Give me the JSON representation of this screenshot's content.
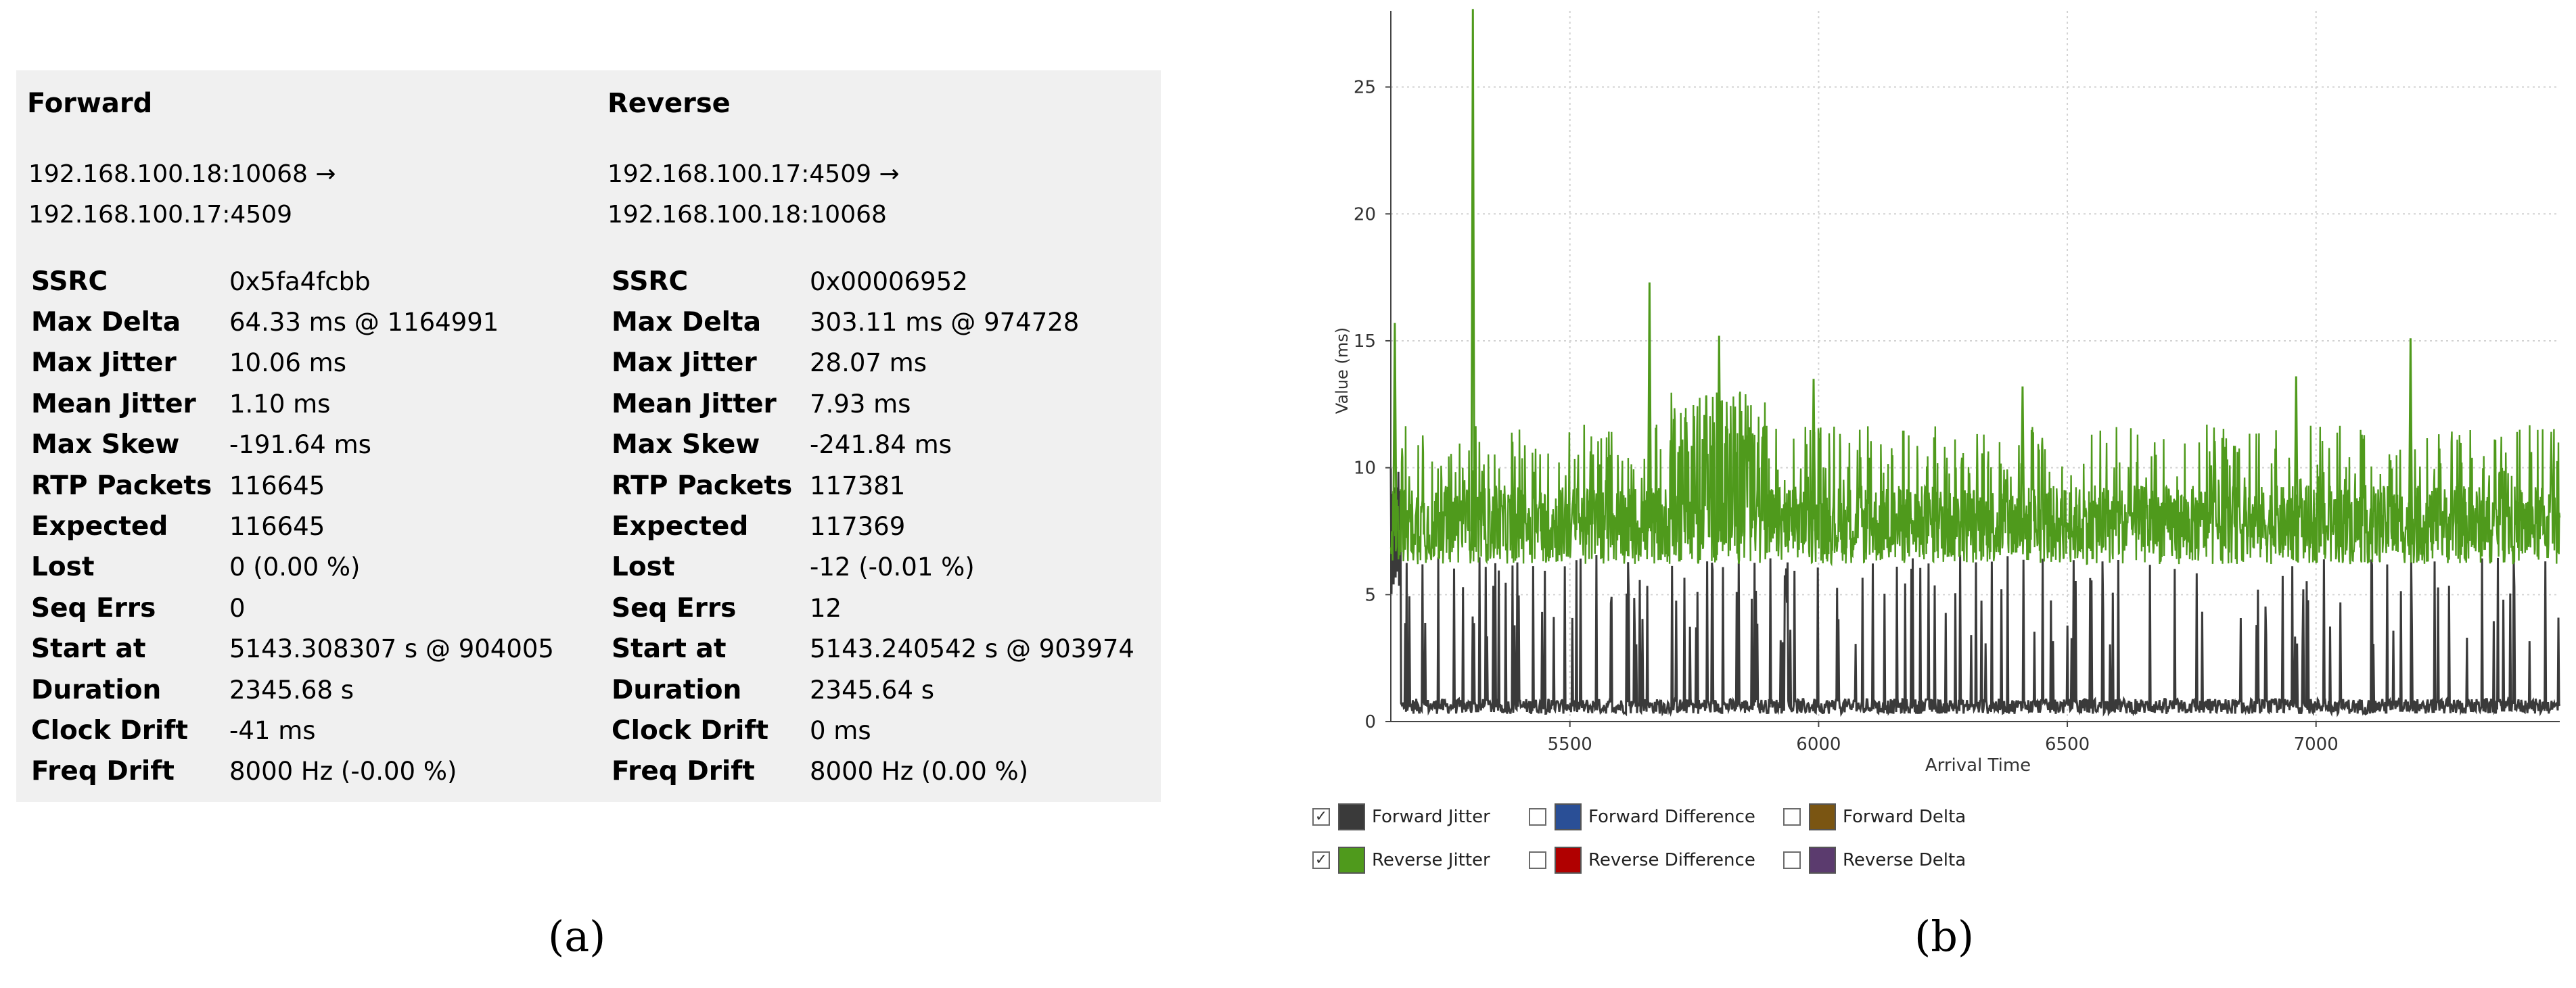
{
  "stats": {
    "forward": {
      "title": "Forward",
      "endpoint_from": "192.168.100.18:10068 →",
      "endpoint_to": "192.168.100.17:4509",
      "rows": [
        {
          "label": "SSRC",
          "value": "0x5fa4fcbb"
        },
        {
          "label": "Max Delta",
          "value": "64.33 ms @ 1164991"
        },
        {
          "label": "Max Jitter",
          "value": "10.06 ms"
        },
        {
          "label": "Mean Jitter",
          "value": "1.10 ms"
        },
        {
          "label": "Max Skew",
          "value": "-191.64 ms"
        },
        {
          "label": "RTP Packets",
          "value": "116645"
        },
        {
          "label": "Expected",
          "value": "116645"
        },
        {
          "label": "Lost",
          "value": "0 (0.00 %)"
        },
        {
          "label": "Seq Errs",
          "value": "0"
        },
        {
          "label": "Start at",
          "value": "5143.308307 s @ 904005"
        },
        {
          "label": "Duration",
          "value": "2345.68 s"
        },
        {
          "label": "Clock Drift",
          "value": "-41 ms"
        },
        {
          "label": "Freq Drift",
          "value": "8000 Hz (-0.00 %)"
        }
      ]
    },
    "reverse": {
      "title": "Reverse",
      "endpoint_from": "192.168.100.17:4509 →",
      "endpoint_to": "192.168.100.18:10068",
      "rows": [
        {
          "label": "SSRC",
          "value": "0x00006952"
        },
        {
          "label": "Max Delta",
          "value": "303.11 ms @ 974728"
        },
        {
          "label": "Max Jitter",
          "value": "28.07 ms"
        },
        {
          "label": "Mean Jitter",
          "value": "7.93 ms"
        },
        {
          "label": "Max Skew",
          "value": "-241.84 ms"
        },
        {
          "label": "RTP Packets",
          "value": "117381"
        },
        {
          "label": "Expected",
          "value": "117369"
        },
        {
          "label": "Lost",
          "value": "-12 (-0.01 %)"
        },
        {
          "label": "Seq Errs",
          "value": "12"
        },
        {
          "label": "Start at",
          "value": "5143.240542 s @ 903974"
        },
        {
          "label": "Duration",
          "value": "2345.64 s"
        },
        {
          "label": "Clock Drift",
          "value": "0 ms"
        },
        {
          "label": "Freq Drift",
          "value": "8000 Hz (0.00 %)"
        }
      ]
    }
  },
  "captions": {
    "a": "(a)",
    "b": "(b)"
  },
  "chart_data": {
    "type": "line",
    "title": "",
    "xlabel": "Arrival Time",
    "ylabel": "Value (ms)",
    "xlim": [
      5140,
      7490
    ],
    "ylim": [
      0,
      28
    ],
    "x_ticks": [
      5500,
      6000,
      6500,
      7000
    ],
    "y_ticks": [
      0,
      5,
      10,
      15,
      20,
      25
    ],
    "grid": true,
    "legend_position": "bottom",
    "series": [
      {
        "name": "Forward Jitter",
        "color": "#3a3a3a",
        "checked": true,
        "baseline": 0.6,
        "spike_max": 10.06
      },
      {
        "name": "Reverse Jitter",
        "color": "#4f9a1c",
        "checked": true,
        "typical_range": [
          6.2,
          10.5
        ],
        "max": 28.07,
        "spikes": [
          {
            "x": 5148,
            "y": 15.7
          },
          {
            "x": 5305,
            "y": 28.07
          },
          {
            "x": 5660,
            "y": 17.3
          },
          {
            "x": 5800,
            "y": 15.2
          },
          {
            "x": 5990,
            "y": 13.5
          },
          {
            "x": 6410,
            "y": 13.2
          },
          {
            "x": 6960,
            "y": 13.6
          },
          {
            "x": 7190,
            "y": 15.1
          }
        ]
      },
      {
        "name": "Forward Difference",
        "color": "#2a4f96",
        "checked": false
      },
      {
        "name": "Forward Delta",
        "color": "#7a5512",
        "checked": false
      },
      {
        "name": "Reverse Difference",
        "color": "#b00000",
        "checked": false
      },
      {
        "name": "Reverse Delta",
        "color": "#5b3b6e",
        "checked": false
      }
    ]
  }
}
